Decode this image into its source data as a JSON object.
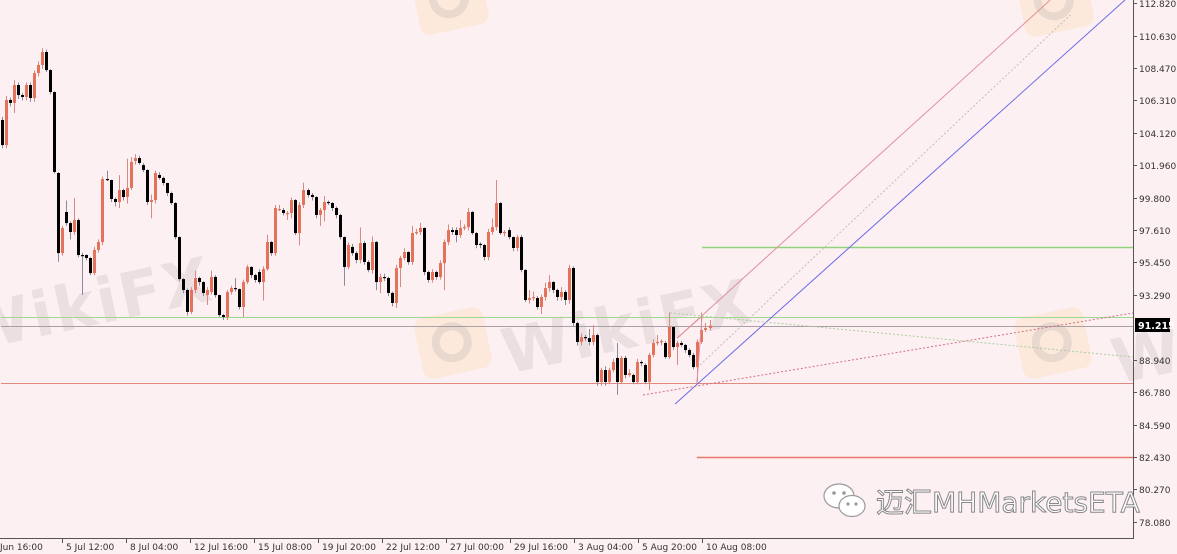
{
  "chart_data": {
    "type": "candlestick",
    "title": "",
    "xlabel": "",
    "ylabel": "",
    "ylim": [
      77.4,
      113.0
    ],
    "grid": false,
    "bull_color": "#e5735c",
    "bear_color": "#000000",
    "background": "#fdf0f3",
    "current_price": "91.215",
    "y_ticks": [
      "112.820",
      "110.630",
      "108.470",
      "106.310",
      "104.120",
      "101.960",
      "99.800",
      "97.610",
      "95.450",
      "93.290",
      "88.940",
      "86.780",
      "84.590",
      "82.430",
      "80.270",
      "78.080"
    ],
    "x_ticks": [
      "Jun 16:00",
      "5 Jul 12:00",
      "8 Jul 04:00",
      "12 Jul 16:00",
      "15 Jul 08:00",
      "19 Jul 20:00",
      "22 Jul 12:00",
      "27 Jul 00:00",
      "29 Jul 16:00",
      "3 Aug 04:00",
      "5 Aug 20:00",
      "10 Aug 08:00"
    ],
    "candles_ohlc": [
      [
        104.99,
        105.2,
        103.1,
        103.31
      ],
      [
        103.31,
        106.6,
        103.1,
        106.33
      ],
      [
        106.33,
        106.5,
        105.9,
        106.13
      ],
      [
        106.13,
        107.66,
        105.46,
        107.33
      ],
      [
        107.33,
        107.5,
        106.4,
        106.66
      ],
      [
        106.66,
        106.8,
        106.3,
        106.53
      ],
      [
        106.53,
        107.5,
        106.3,
        107.33
      ],
      [
        107.33,
        107.5,
        106.2,
        106.46
      ],
      [
        106.46,
        108.3,
        106.2,
        108.13
      ],
      [
        108.13,
        108.9,
        107.9,
        108.67
      ],
      [
        108.67,
        109.8,
        108.4,
        109.54
      ],
      [
        109.54,
        109.7,
        108.2,
        108.33
      ],
      [
        108.33,
        108.4,
        106.7,
        106.86
      ],
      [
        106.86,
        106.9,
        101.4,
        101.51
      ],
      [
        101.44,
        101.5,
        95.5,
        96.08
      ],
      [
        96.08,
        97.9,
        95.9,
        97.76
      ],
      [
        98.83,
        99.6,
        97.9,
        98.09
      ],
      [
        98.09,
        98.2,
        97.0,
        97.49
      ],
      [
        97.49,
        99.77,
        97.3,
        98.29
      ],
      [
        98.29,
        98.4,
        95.8,
        95.95
      ],
      [
        95.95,
        96.1,
        93.27,
        95.88
      ],
      [
        95.95,
        96.0,
        95.6,
        95.75
      ],
      [
        95.75,
        95.8,
        94.6,
        94.74
      ],
      [
        94.74,
        96.5,
        94.6,
        96.29
      ],
      [
        96.29,
        97.0,
        96.1,
        96.82
      ],
      [
        96.82,
        101.2,
        96.6,
        101.04
      ],
      [
        101.04,
        101.6,
        100.9,
        100.97
      ],
      [
        100.97,
        101.0,
        99.5,
        99.7
      ],
      [
        99.7,
        99.8,
        99.2,
        99.5
      ],
      [
        99.5,
        101.3,
        99.1,
        100.3
      ],
      [
        100.3,
        100.4,
        99.6,
        99.83
      ],
      [
        99.83,
        102.4,
        99.4,
        100.44
      ],
      [
        100.44,
        102.5,
        100.3,
        102.18
      ],
      [
        102.24,
        102.7,
        102.0,
        102.44
      ],
      [
        102.44,
        102.6,
        102.0,
        102.11
      ],
      [
        101.97,
        102.1,
        101.5,
        101.64
      ],
      [
        101.64,
        101.7,
        99.3,
        99.5
      ],
      [
        99.5,
        100.0,
        98.4,
        99.63
      ],
      [
        99.63,
        101.6,
        99.4,
        101.44
      ],
      [
        101.31,
        101.5,
        101.0,
        101.11
      ],
      [
        101.11,
        101.2,
        100.6,
        100.77
      ],
      [
        100.77,
        100.8,
        99.9,
        100.1
      ],
      [
        100.1,
        100.2,
        99.3,
        99.43
      ],
      [
        99.43,
        99.5,
        97.0,
        97.15
      ],
      [
        97.15,
        97.2,
        94.2,
        94.34
      ],
      [
        94.34,
        94.4,
        93.4,
        93.61
      ],
      [
        93.61,
        93.7,
        91.9,
        92.14
      ],
      [
        92.14,
        93.8,
        92.0,
        93.61
      ],
      [
        93.61,
        94.9,
        93.4,
        94.41
      ],
      [
        94.41,
        94.5,
        93.9,
        94.14
      ],
      [
        94.14,
        94.2,
        93.2,
        93.41
      ],
      [
        93.27,
        93.8,
        92.6,
        93.61
      ],
      [
        93.47,
        94.9,
        93.3,
        94.48
      ],
      [
        94.48,
        94.6,
        93.1,
        93.27
      ],
      [
        93.27,
        93.3,
        91.8,
        91.93
      ],
      [
        91.93,
        92.0,
        91.6,
        91.8
      ],
      [
        91.8,
        93.6,
        91.6,
        93.47
      ],
      [
        93.47,
        93.9,
        93.3,
        93.74
      ],
      [
        93.74,
        94.4,
        93.5,
        93.67
      ],
      [
        93.67,
        93.7,
        92.3,
        92.47
      ],
      [
        92.47,
        94.3,
        91.8,
        94.14
      ],
      [
        94.14,
        95.3,
        94.0,
        95.15
      ],
      [
        95.15,
        95.2,
        94.4,
        94.61
      ],
      [
        94.61,
        94.7,
        94.1,
        94.28
      ],
      [
        94.81,
        95.0,
        94.0,
        94.14
      ],
      [
        94.14,
        95.2,
        92.9,
        95.01
      ],
      [
        95.01,
        97.3,
        94.9,
        96.82
      ],
      [
        96.82,
        96.9,
        95.9,
        96.08
      ],
      [
        96.08,
        99.3,
        95.9,
        99.1
      ],
      [
        99.03,
        99.3,
        98.9,
        99.03
      ],
      [
        98.96,
        99.1,
        98.6,
        98.76
      ],
      [
        98.76,
        98.9,
        98.3,
        98.76
      ],
      [
        98.76,
        99.8,
        98.4,
        99.63
      ],
      [
        99.63,
        99.7,
        97.3,
        97.42
      ],
      [
        97.42,
        99.5,
        96.6,
        99.3
      ],
      [
        99.3,
        100.8,
        99.1,
        100.3
      ],
      [
        100.3,
        100.4,
        99.8,
        99.97
      ],
      [
        99.97,
        100.1,
        99.6,
        99.83
      ],
      [
        99.83,
        99.9,
        98.4,
        98.63
      ],
      [
        98.63,
        99.1,
        97.9,
        98.96
      ],
      [
        98.96,
        99.9,
        98.2,
        99.5
      ],
      [
        99.5,
        99.6,
        99.3,
        99.43
      ],
      [
        99.43,
        99.5,
        98.9,
        99.1
      ],
      [
        99.1,
        99.2,
        98.4,
        98.63
      ],
      [
        98.63,
        98.7,
        97.0,
        97.15
      ],
      [
        97.15,
        97.2,
        93.9,
        95.15
      ],
      [
        95.15,
        96.8,
        95.0,
        96.62
      ],
      [
        96.49,
        96.7,
        95.9,
        96.08
      ],
      [
        96.08,
        96.2,
        95.4,
        95.62
      ],
      [
        95.62,
        97.8,
        95.4,
        96.75
      ],
      [
        96.75,
        96.9,
        95.3,
        95.48
      ],
      [
        95.48,
        95.6,
        94.8,
        94.95
      ],
      [
        94.95,
        97.2,
        94.7,
        96.82
      ],
      [
        96.82,
        96.9,
        93.6,
        94.14
      ],
      [
        94.14,
        94.7,
        93.4,
        94.48
      ],
      [
        94.48,
        94.7,
        94.2,
        94.41
      ],
      [
        94.41,
        94.5,
        93.2,
        93.41
      ],
      [
        93.41,
        93.5,
        92.5,
        92.74
      ],
      [
        92.74,
        95.3,
        92.4,
        95.08
      ],
      [
        95.08,
        95.9,
        93.8,
        95.75
      ],
      [
        95.75,
        96.4,
        95.6,
        96.15
      ],
      [
        96.15,
        96.2,
        95.3,
        95.48
      ],
      [
        95.48,
        97.9,
        95.3,
        97.42
      ],
      [
        97.42,
        97.7,
        97.3,
        97.49
      ],
      [
        97.49,
        98.1,
        97.3,
        97.76
      ],
      [
        97.76,
        97.8,
        94.6,
        94.81
      ],
      [
        94.81,
        94.9,
        94.1,
        94.28
      ],
      [
        94.28,
        95.0,
        94.1,
        94.81
      ],
      [
        94.81,
        94.9,
        94.3,
        94.48
      ],
      [
        94.48,
        95.6,
        94.3,
        95.41
      ],
      [
        95.41,
        97.0,
        93.6,
        96.82
      ],
      [
        96.82,
        98.0,
        96.6,
        97.62
      ],
      [
        97.62,
        97.8,
        97.3,
        97.49
      ],
      [
        97.62,
        97.8,
        96.8,
        97.29
      ],
      [
        97.29,
        98.3,
        97.1,
        97.76
      ],
      [
        97.76,
        98.0,
        97.6,
        97.82
      ],
      [
        97.82,
        99.1,
        97.6,
        98.83
      ],
      [
        98.83,
        98.9,
        97.3,
        97.42
      ],
      [
        97.42,
        97.5,
        96.4,
        96.62
      ],
      [
        96.7,
        96.8,
        96.4,
        96.62
      ],
      [
        96.62,
        96.7,
        95.6,
        95.82
      ],
      [
        95.82,
        97.7,
        95.6,
        97.49
      ],
      [
        97.49,
        98.4,
        97.3,
        97.82
      ],
      [
        97.82,
        100.97,
        97.6,
        99.43
      ],
      [
        99.43,
        99.5,
        97.3,
        97.42
      ],
      [
        97.42,
        97.6,
        97.2,
        97.49
      ],
      [
        97.62,
        97.8,
        97.0,
        97.15
      ],
      [
        97.15,
        97.2,
        96.2,
        96.42
      ],
      [
        96.42,
        97.3,
        96.2,
        97.15
      ],
      [
        97.15,
        97.3,
        94.8,
        94.95
      ],
      [
        94.95,
        95.0,
        92.8,
        92.94
      ],
      [
        92.94,
        93.6,
        92.7,
        93.07
      ],
      [
        93.07,
        93.5,
        92.9,
        93.14
      ],
      [
        93.07,
        93.2,
        92.3,
        92.47
      ],
      [
        92.47,
        93.3,
        92.0,
        93.14
      ],
      [
        93.14,
        94.1,
        92.9,
        93.74
      ],
      [
        93.74,
        94.6,
        93.5,
        94.14
      ],
      [
        94.14,
        94.2,
        93.4,
        93.61
      ],
      [
        93.61,
        93.7,
        92.9,
        93.14
      ],
      [
        93.14,
        93.8,
        92.9,
        93.47
      ],
      [
        93.47,
        93.6,
        92.6,
        92.94
      ],
      [
        92.94,
        95.3,
        92.7,
        95.08
      ],
      [
        95.08,
        95.2,
        91.2,
        91.4
      ],
      [
        91.4,
        91.5,
        89.9,
        90.13
      ],
      [
        90.13,
        90.7,
        89.9,
        90.46
      ],
      [
        90.46,
        90.6,
        90.2,
        90.39
      ],
      [
        90.39,
        91.0,
        89.9,
        90.13
      ],
      [
        90.13,
        91.26,
        89.9,
        90.59
      ],
      [
        90.59,
        90.7,
        87.2,
        87.45
      ],
      [
        87.45,
        88.4,
        87.2,
        88.25
      ],
      [
        88.25,
        88.5,
        87.2,
        87.45
      ],
      [
        87.45,
        88.4,
        87.3,
        88.25
      ],
      [
        88.25,
        89.0,
        88.1,
        88.79
      ],
      [
        89.06,
        90.06,
        86.6,
        87.45
      ],
      [
        87.45,
        89.2,
        87.3,
        89.06
      ],
      [
        89.06,
        89.2,
        87.7,
        87.92
      ],
      [
        87.92,
        88.3,
        87.8,
        88.05
      ],
      [
        87.92,
        88.0,
        87.3,
        87.45
      ],
      [
        87.45,
        89.0,
        87.3,
        88.79
      ],
      [
        88.79,
        88.9,
        88.5,
        88.72
      ],
      [
        88.59,
        88.7,
        87.3,
        87.45
      ],
      [
        87.45,
        89.4,
        86.9,
        89.26
      ],
      [
        89.26,
        90.3,
        89.1,
        90.06
      ],
      [
        90.06,
        90.6,
        89.9,
        90.13
      ],
      [
        90.13,
        90.3,
        89.9,
        90.19
      ],
      [
        90.06,
        90.2,
        89.0,
        89.12
      ],
      [
        89.12,
        92.1,
        89.0,
        91.13
      ],
      [
        91.13,
        91.2,
        89.6,
        89.79
      ],
      [
        89.79,
        90.2,
        88.6,
        90.06
      ],
      [
        90.06,
        90.2,
        89.8,
        89.93
      ],
      [
        89.93,
        90.0,
        89.4,
        89.59
      ],
      [
        89.59,
        89.7,
        89.1,
        89.26
      ],
      [
        89.26,
        89.4,
        88.3,
        88.45
      ],
      [
        88.45,
        90.3,
        87.45,
        90.13
      ],
      [
        90.13,
        92.1,
        90.0,
        90.93
      ],
      [
        90.93,
        91.4,
        90.8,
        91.06
      ],
      [
        91.06,
        91.6,
        90.9,
        91.215
      ]
    ],
    "horizontal_levels": [
      {
        "price": 91.8,
        "color": "#9fd88a",
        "from_bar": 0
      },
      {
        "price": 91.215,
        "color": "#a8a0a4",
        "from_bar": 0
      },
      {
        "price": 87.38,
        "color": "#e08a80",
        "from_bar": 0
      },
      {
        "price": 96.49,
        "color": "#8fd47a",
        "from_bar": 174.4
      },
      {
        "price": 82.43,
        "color": "#e8786a",
        "from_bar": 173.1
      }
    ],
    "trendlines": [
      {
        "from": [
          168.2,
          90.39
        ],
        "to": [
          261,
          113.02
        ],
        "color": "#e0909a",
        "style": "solid"
      },
      {
        "from": [
          167.7,
          85.98
        ],
        "to": [
          279.6,
          113.02
        ],
        "color": "#6a6ae8",
        "style": "solid"
      },
      {
        "from": [
          173.9,
          88.59
        ],
        "to": [
          266,
          112.02
        ],
        "color": "#c8b8bc",
        "style": "dotted"
      },
      {
        "from": [
          168.2,
          90.39
        ],
        "to": [
          174.4,
          91.87
        ],
        "color": "#e0909a",
        "style": "solid"
      },
      {
        "from": [
          174.4,
          91.87
        ],
        "to": [
          173.1,
          87.38
        ],
        "color": "#e0909a",
        "style": "solid"
      },
      {
        "from": [
          159.7,
          86.58
        ],
        "to": [
          281.6,
          92.07
        ],
        "color": "#d07080",
        "style": "dotted"
      },
      {
        "from": [
          166.4,
          92.07
        ],
        "to": [
          281.6,
          89.12
        ],
        "color": "#a8cfa0",
        "style": "dotted"
      }
    ]
  },
  "watermarks": {
    "wikifx": "WikiFX",
    "wechat_account": "迈汇MHMarketsETA"
  }
}
